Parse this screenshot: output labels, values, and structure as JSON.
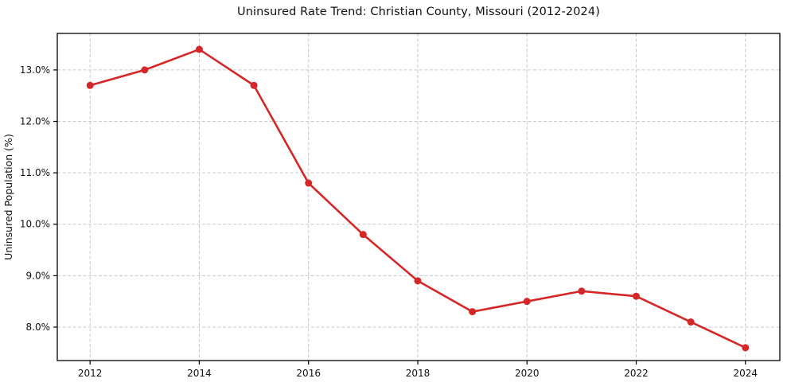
{
  "chart_data": {
    "type": "line",
    "title": "Uninsured Rate Trend: Christian County, Missouri (2012-2024)",
    "xlabel": "",
    "ylabel": "Uninsured Population (%)",
    "x": [
      2012,
      2013,
      2014,
      2015,
      2016,
      2017,
      2018,
      2019,
      2020,
      2021,
      2022,
      2023,
      2024
    ],
    "values": [
      12.7,
      13.0,
      13.4,
      12.7,
      10.8,
      9.8,
      8.9,
      8.3,
      8.5,
      8.7,
      8.6,
      8.1,
      7.6
    ],
    "xlim": [
      2011.4,
      2024.63
    ],
    "ylim": [
      7.35,
      13.71
    ],
    "xticks": [
      2012,
      2014,
      2016,
      2018,
      2020,
      2022,
      2024
    ],
    "yticks": [
      8.0,
      9.0,
      10.0,
      11.0,
      12.0,
      13.0
    ],
    "ytick_suffix": "%",
    "grid": true,
    "legend_position": "none",
    "colors": {
      "line": "#d62728",
      "marker": "#d62728",
      "grid": "#c9c9c9",
      "spine": "#000000",
      "text": "#111111",
      "background": "#ffffff"
    },
    "marker_style": "circle",
    "line_width": 2.6,
    "marker_radius": 4.5
  }
}
